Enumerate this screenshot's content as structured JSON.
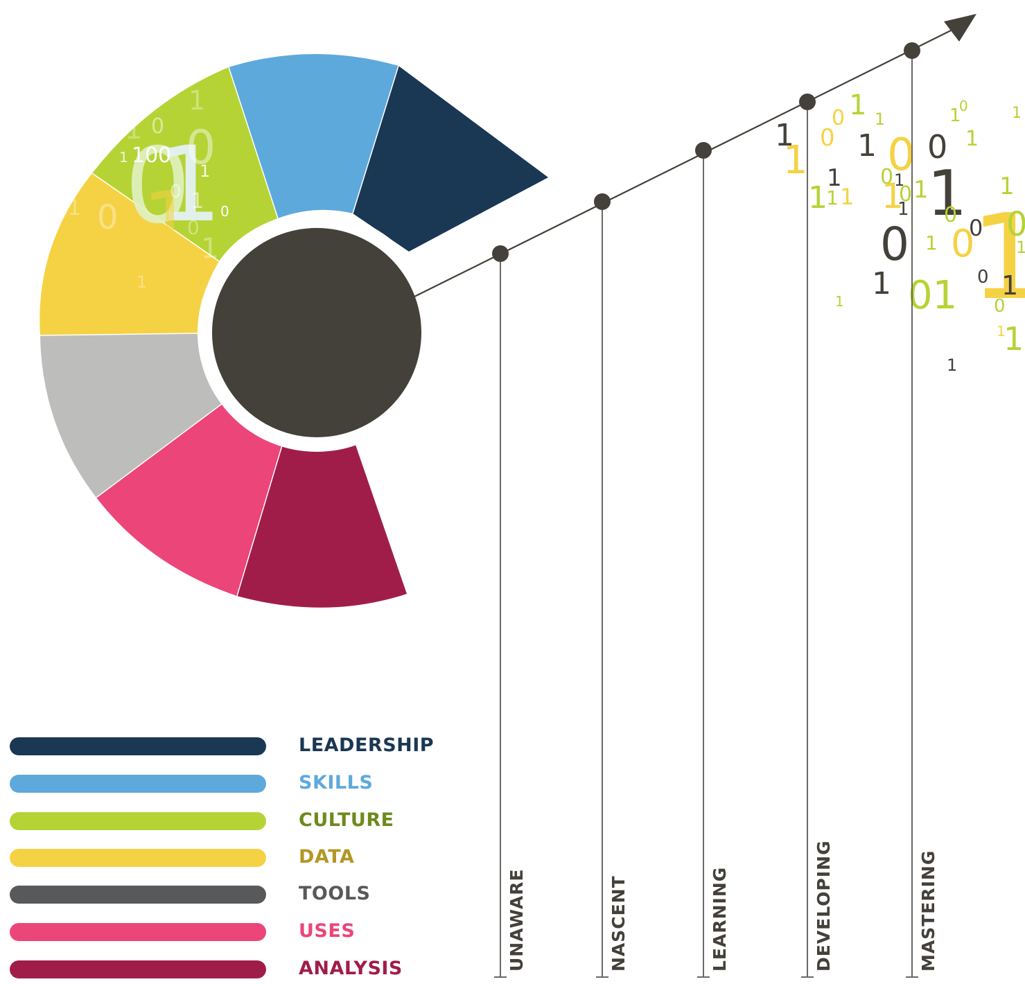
{
  "colors": {
    "hub": "#44403a",
    "axis": "#44403a",
    "leadership": "#1a3753",
    "skills": "#5da9dc",
    "culture": "#b5d335",
    "data": "#f5d244",
    "tools": "#bdbebc",
    "tools_legend": "#58595b",
    "uses": "#ec4579",
    "analysis": "#a11d49"
  },
  "legend": [
    {
      "label": "LEADERSHIP",
      "bar_color": "#1a3753",
      "text_color": "#1a3753"
    },
    {
      "label": "SKILLS",
      "bar_color": "#5da9dc",
      "text_color": "#5da9dc"
    },
    {
      "label": "CULTURE",
      "bar_color": "#b5d335",
      "text_color": "#6e8a1c"
    },
    {
      "label": "DATA",
      "bar_color": "#f5d244",
      "text_color": "#b39724"
    },
    {
      "label": "TOOLS",
      "bar_color": "#58595b",
      "text_color": "#58595b"
    },
    {
      "label": "USES",
      "bar_color": "#ec4579",
      "text_color": "#ec4579"
    },
    {
      "label": "ANALYSIS",
      "bar_color": "#a11d49",
      "text_color": "#a11d49"
    }
  ],
  "stages": [
    {
      "label": "UNAWARE"
    },
    {
      "label": "NASCENT"
    },
    {
      "label": "LEARNING"
    },
    {
      "label": "DEVELOPING"
    },
    {
      "label": "MASTERING"
    }
  ]
}
